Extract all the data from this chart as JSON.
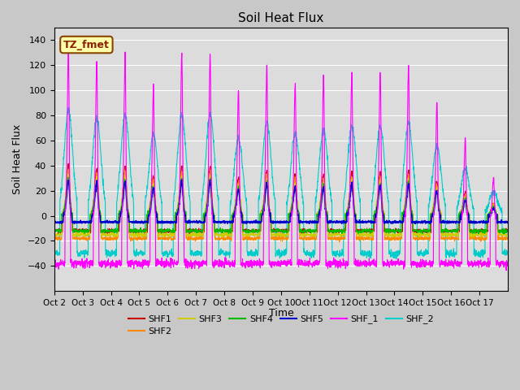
{
  "title": "Soil Heat Flux",
  "ylabel": "Soil Heat Flux",
  "xlabel": "Time",
  "ylim": [
    -60,
    150
  ],
  "yticks": [
    -40,
    -20,
    0,
    20,
    40,
    60,
    80,
    100,
    120,
    140
  ],
  "fig_bg": "#c8c8c8",
  "plot_bg": "#dcdcdc",
  "series_colors": {
    "SHF1": "#cc0000",
    "SHF2": "#ff8800",
    "SHF3": "#cccc00",
    "SHF4": "#00bb00",
    "SHF5": "#0000cc",
    "SHF_1": "#ff00ff",
    "SHF_2": "#00cccc"
  },
  "tz_label": "TZ_fmet",
  "tz_bg": "#ffffaa",
  "tz_border": "#884400",
  "n_days": 16,
  "ppd": 144,
  "start_day": 2
}
